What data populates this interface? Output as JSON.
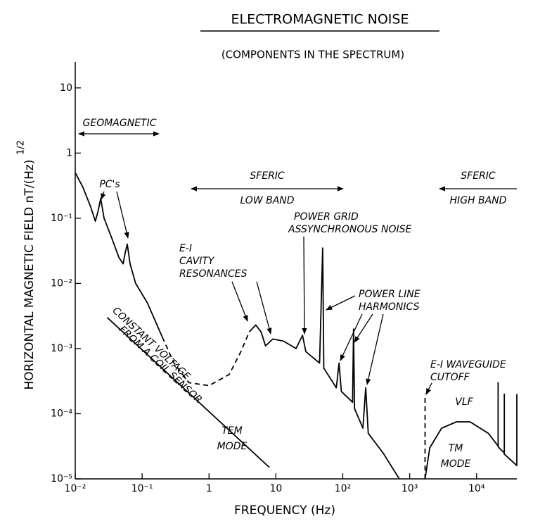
{
  "chart_data": {
    "type": "line",
    "title": "ELECTROMAGNETIC NOISE",
    "subtitle": "(COMPONENTS IN THE SPECTRUM)",
    "xlabel": "FREQUENCY (Hz)",
    "ylabel": "HORIZONTAL MAGNETIC FIELD nT/(Hz)",
    "ylabel_exponent": "1/2",
    "xscale": "log",
    "yscale": "log",
    "xlim": [
      0.01,
      40000
    ],
    "ylim": [
      1e-05,
      25
    ],
    "xticks": [
      {
        "value": 0.01,
        "label": "10⁻²"
      },
      {
        "value": 0.1,
        "label": "10⁻¹"
      },
      1,
      10,
      {
        "value": 100,
        "label": "10²"
      },
      {
        "value": 1000,
        "label": "10³"
      },
      {
        "value": 10000,
        "label": "10⁴"
      }
    ],
    "yticks": [
      {
        "value": 1e-05,
        "label": "10⁻⁵"
      },
      {
        "value": 0.0001,
        "label": "10⁻⁴"
      },
      {
        "value": 0.001,
        "label": "10⁻³"
      },
      {
        "value": 0.01,
        "label": "10⁻²"
      },
      {
        "value": 0.1,
        "label": "10⁻¹"
      },
      1,
      10
    ],
    "series": [
      {
        "color": "#000000",
        "dashed": false,
        "x": [
          0.01,
          0.013,
          0.017,
          0.02,
          0.022,
          0.024,
          0.027,
          0.035,
          0.045,
          0.052,
          0.056,
          0.06,
          0.066,
          0.08,
          0.12,
          0.2
        ],
        "values": [
          0.5,
          0.3,
          0.15,
          0.09,
          0.13,
          0.2,
          0.1,
          0.05,
          0.025,
          0.02,
          0.03,
          0.04,
          0.02,
          0.01,
          0.005,
          0.0015
        ]
      },
      {
        "color": "#000000",
        "dashed": true,
        "x": [
          0.2,
          0.3,
          0.5,
          1,
          2,
          3,
          4
        ],
        "values": [
          0.0015,
          0.0006,
          0.0003,
          0.00027,
          0.0004,
          0.0009,
          0.0018
        ]
      },
      {
        "color": "#000000",
        "dashed": false,
        "x": [
          4,
          5,
          6,
          7,
          9,
          13,
          20,
          25,
          28,
          32,
          45,
          50,
          52,
          80,
          88,
          95,
          140,
          145,
          150,
          200,
          220,
          240,
          400,
          700
        ],
        "values": [
          0.0018,
          0.0023,
          0.0018,
          0.0011,
          0.0014,
          0.0013,
          0.001,
          0.0016,
          0.0009,
          0.0008,
          0.0006,
          0.035,
          0.0005,
          0.00025,
          0.0006,
          0.00022,
          0.00015,
          0.002,
          0.00012,
          6e-05,
          0.00025,
          5e-05,
          2.5e-05,
          1e-05
        ]
      },
      {
        "color": "#000000",
        "dashed": true,
        "x": [
          1700,
          1700
        ],
        "values": [
          1e-05,
          0.0002
        ]
      },
      {
        "color": "#000000",
        "dashed": false,
        "x": [
          1700,
          2000,
          3000,
          5000,
          8000,
          15000,
          21000,
          21000,
          21001,
          26000,
          26000,
          26001,
          40000,
          40000
        ],
        "values": [
          1e-05,
          3e-05,
          6e-05,
          7.5e-05,
          7.5e-05,
          5e-05,
          3.2e-05,
          0.0003,
          3.1e-05,
          2.5e-05,
          0.0002,
          2.4e-05,
          1.6e-05,
          0.0002
        ]
      },
      {
        "color": "#000000",
        "dashed": false,
        "x": [
          0.03,
          8
        ],
        "values": [
          0.003,
          1.5e-05
        ]
      }
    ],
    "annotations": [
      "GEOMAGNETIC",
      "PC's",
      "SFERIC",
      "LOW BAND",
      "SFERIC",
      "HIGH BAND",
      "POWER GRID",
      "ASSYNCHRONOUS NOISE",
      "E-I",
      "CAVITY",
      "RESONANCES",
      "POWER LINE",
      "HARMONICS",
      "CONSTANT VOLTAGE",
      "FROM A COIL SENSOR",
      "TEM",
      "MODE",
      "E-I WAVEGUIDE",
      "CUTOFF",
      "VLF",
      "TM",
      "MODE"
    ]
  }
}
